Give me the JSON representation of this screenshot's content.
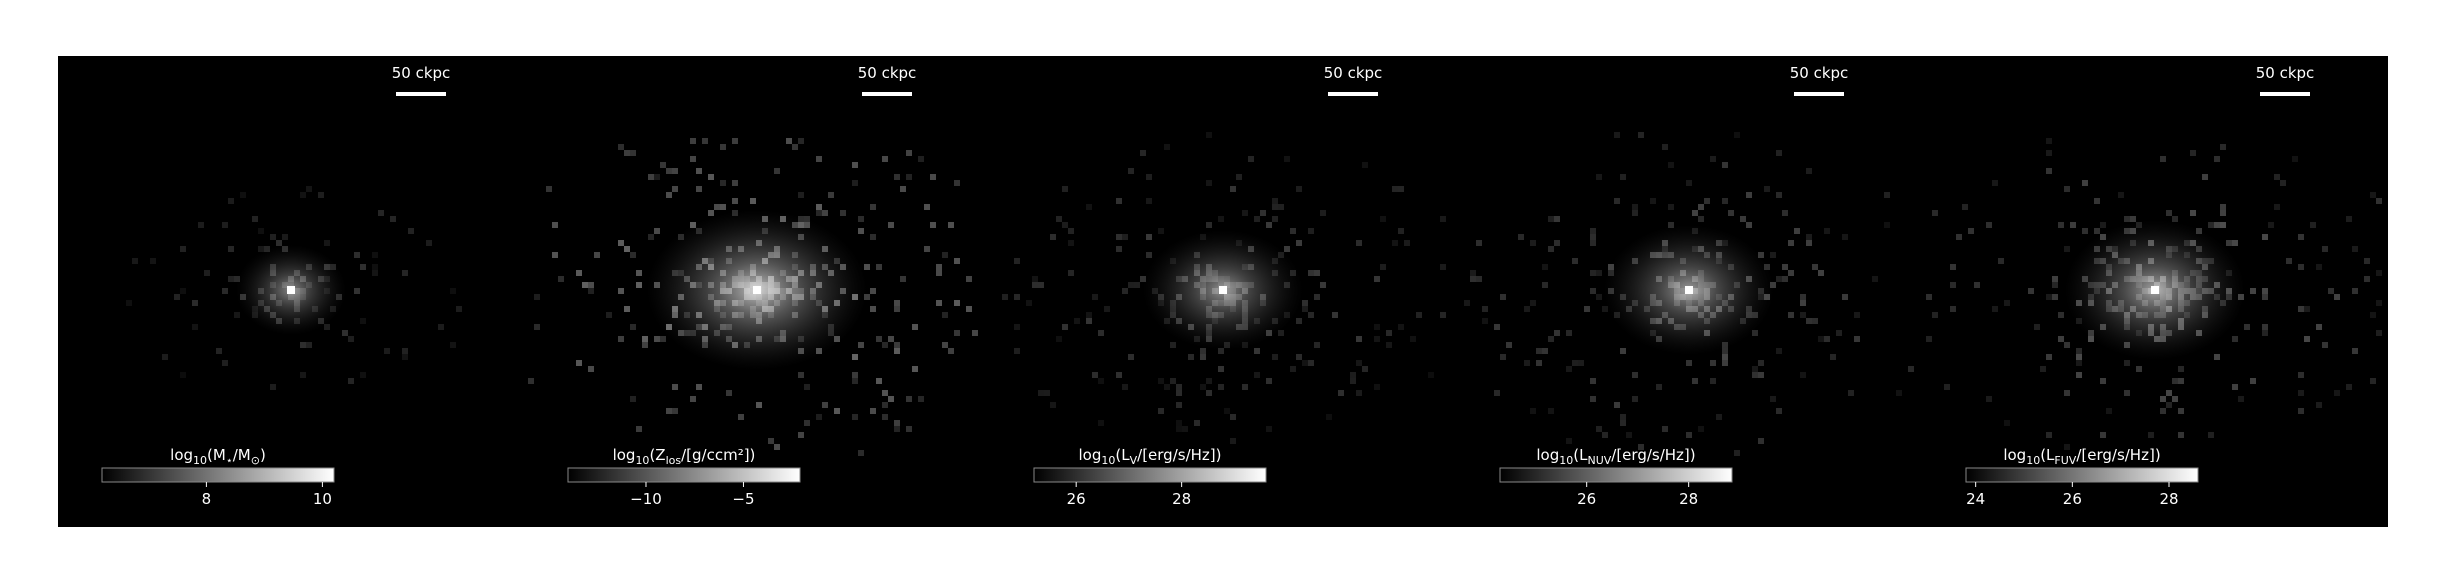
{
  "chart_data": [
    {
      "type": "image",
      "scalebar_label": "50 ckpc",
      "colorbar_label": [
        "log",
        "10",
        "(M",
        "⋆",
        "/M",
        "⊙",
        ")"
      ],
      "clim": [
        6.2,
        10.2
      ],
      "cticks": [
        8,
        10
      ]
    },
    {
      "type": "image",
      "scalebar_label": "50 ckpc",
      "colorbar_label": [
        "log",
        "10",
        "(Z",
        "los",
        "/[g/ccm²])"
      ],
      "clim": [
        -14,
        -2.1
      ],
      "cticks": [
        {
          "value": -10,
          "label": "−10"
        },
        {
          "value": -5,
          "label": "−5"
        }
      ]
    },
    {
      "type": "image",
      "scalebar_label": "50 ckpc",
      "colorbar_label": [
        "log",
        "10",
        "(L",
        "V",
        "/[erg/s/Hz])"
      ],
      "clim": [
        25.2,
        29.6
      ],
      "cticks": [
        26,
        28
      ]
    },
    {
      "type": "image",
      "scalebar_label": "50 ckpc",
      "colorbar_label": [
        "log",
        "10",
        "(L",
        "NUV",
        "/[erg/s/Hz])"
      ],
      "clim": [
        24.3,
        28.85
      ],
      "cticks": [
        26,
        28
      ]
    },
    {
      "type": "image",
      "scalebar_label": "50 ckpc",
      "colorbar_label": [
        "log",
        "10",
        "(L",
        "FUV",
        "/[erg/s/Hz])"
      ],
      "clim": [
        23.8,
        28.6
      ],
      "cticks": [
        24,
        26,
        28
      ]
    }
  ]
}
